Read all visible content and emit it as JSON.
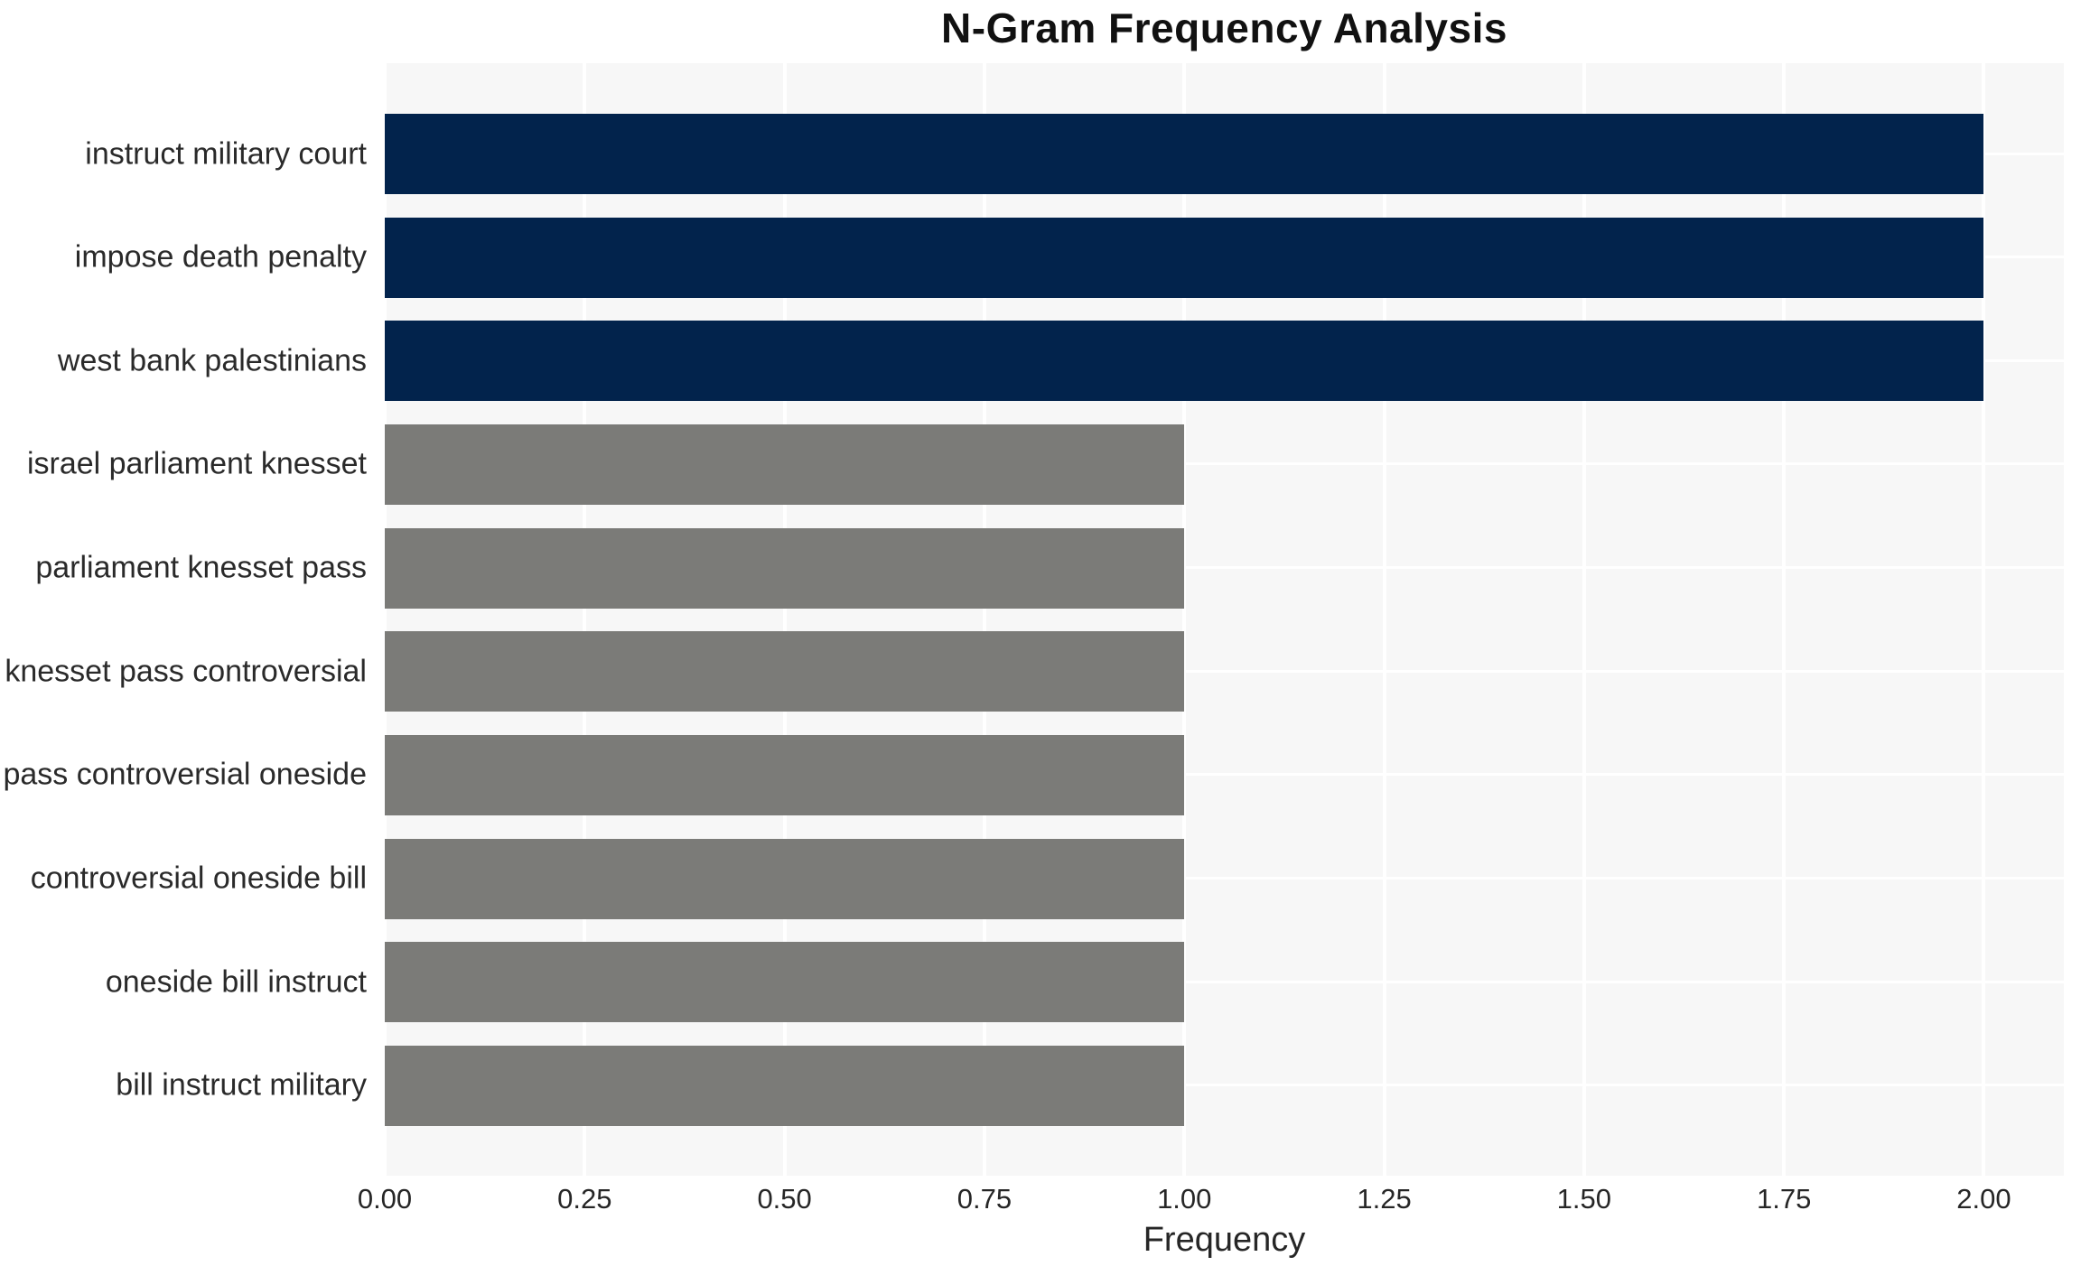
{
  "title": "N-Gram Frequency Analysis",
  "colors": {
    "bar_high": "#02234c",
    "bar_low": "#7b7b78",
    "plot_background": "#f7f7f7",
    "gridline": "#ffffff",
    "label_text": "#2a2a2a",
    "title_text": "#111111"
  },
  "chart_data": {
    "type": "bar",
    "orientation": "horizontal",
    "title": "N-Gram Frequency Analysis",
    "categories": [
      "instruct military court",
      "impose death penalty",
      "west bank palestinians",
      "israel parliament knesset",
      "parliament knesset pass",
      "knesset pass controversial",
      "pass controversial oneside",
      "controversial oneside bill",
      "oneside bill instruct",
      "bill instruct military"
    ],
    "values": [
      2,
      2,
      2,
      1,
      1,
      1,
      1,
      1,
      1,
      1
    ],
    "bar_colors": [
      "#02234c",
      "#02234c",
      "#02234c",
      "#7b7b78",
      "#7b7b78",
      "#7b7b78",
      "#7b7b78",
      "#7b7b78",
      "#7b7b78",
      "#7b7b78"
    ],
    "xlabel": "Frequency",
    "ylabel": "",
    "xlim": [
      0,
      2.1
    ],
    "xticks": [
      0,
      0.25,
      0.5,
      0.75,
      1.0,
      1.25,
      1.5,
      1.75,
      2.0
    ],
    "xtick_labels": [
      "0.00",
      "0.25",
      "0.50",
      "0.75",
      "1.00",
      "1.25",
      "1.50",
      "1.75",
      "2.00"
    ],
    "grid": true,
    "legend_position": "none"
  }
}
